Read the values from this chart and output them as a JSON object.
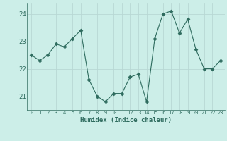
{
  "x": [
    0,
    1,
    2,
    3,
    4,
    5,
    6,
    7,
    8,
    9,
    10,
    11,
    12,
    13,
    14,
    15,
    16,
    17,
    18,
    19,
    20,
    21,
    22,
    23
  ],
  "y": [
    22.5,
    22.3,
    22.5,
    22.9,
    22.8,
    23.1,
    23.4,
    21.6,
    21.0,
    20.8,
    21.1,
    21.1,
    21.7,
    21.8,
    20.8,
    23.1,
    24.0,
    24.1,
    23.3,
    23.8,
    22.7,
    22.0,
    22.0,
    22.3
  ],
  "line_color": "#2e6b5e",
  "marker": "D",
  "marker_size": 2.5,
  "bg_color": "#cceee8",
  "grid_color": "#b8d8d4",
  "tick_color": "#2e6b5e",
  "label_color": "#2e6b5e",
  "xlabel": "Humidex (Indice chaleur)",
  "ylim": [
    20.5,
    24.4
  ],
  "yticks": [
    21,
    22,
    23,
    24
  ],
  "xticks": [
    0,
    1,
    2,
    3,
    4,
    5,
    6,
    7,
    8,
    9,
    10,
    11,
    12,
    13,
    14,
    15,
    16,
    17,
    18,
    19,
    20,
    21,
    22,
    23
  ]
}
